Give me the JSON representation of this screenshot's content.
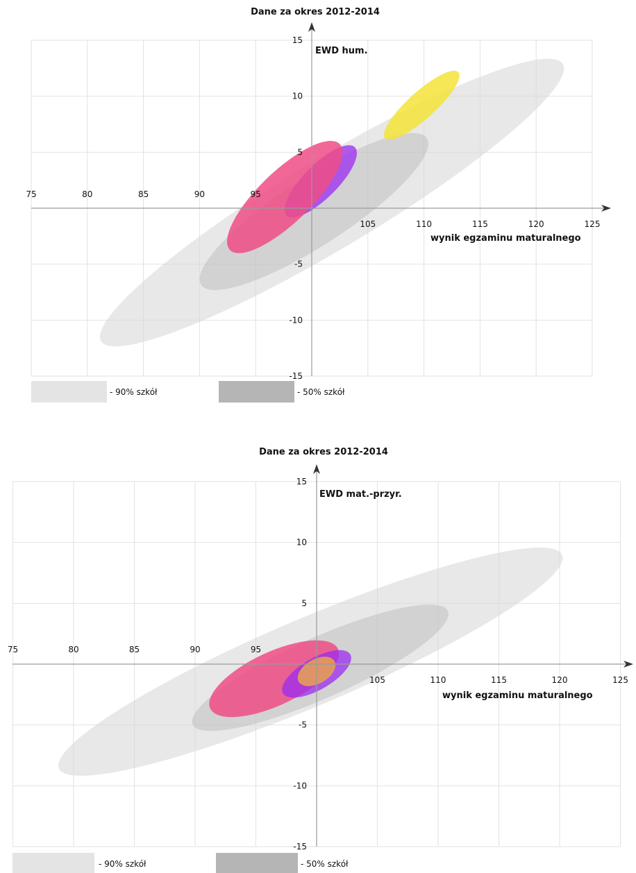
{
  "charts": [
    {
      "title": "Dane za okres 2012-2014",
      "ylabel": "EWD hum.",
      "xlabel": "wynik egzaminu maturalnego",
      "legend": {
        "p90": "- 90% szkół",
        "p50": "- 50% szkół"
      }
    },
    {
      "title": "Dane za okres 2012-2014",
      "ylabel": "EWD mat.-przyr.",
      "xlabel": "wynik egzaminu maturalnego",
      "legend": {
        "p90": "- 90% szkół",
        "p50": "- 50% szkół"
      }
    }
  ],
  "chart_data": [
    {
      "type": "scatter",
      "title": "Dane za okres 2012-2014",
      "xlabel": "wynik egzaminu maturalnego",
      "ylabel": "EWD hum.",
      "xlim": [
        75,
        125
      ],
      "ylim": [
        -15,
        15
      ],
      "x_ticks": [
        75,
        80,
        85,
        90,
        95,
        105,
        110,
        115,
        120,
        125
      ],
      "y_ticks": [
        15,
        10,
        5,
        -5,
        -10,
        -15
      ],
      "grid": true,
      "legend_position": "bottom-left",
      "ellipses": [
        {
          "kind": "90% szkół",
          "color": "#d9d9d9",
          "opacity": 0.6,
          "cx": 101.8,
          "cy": 0.5,
          "rx": 24.0,
          "ry": 4.0,
          "angle": 31
        },
        {
          "kind": "50% szkół",
          "color": "#a8a8a8",
          "opacity": 0.35,
          "cx": 100.2,
          "cy": -0.3,
          "rx": 12.0,
          "ry": 3.0,
          "angle": 33
        },
        {
          "color": "#f4e33a",
          "opacity": 0.85,
          "cx": 109.8,
          "cy": 9.2,
          "rx": 4.4,
          "ry": 1.2,
          "angle": 42
        },
        {
          "color": "#9b2bf0",
          "opacity": 0.75,
          "cx": 100.8,
          "cy": 2.4,
          "rx": 4.3,
          "ry": 1.5,
          "angle": 45
        },
        {
          "color": "#ee4d86",
          "opacity": 0.85,
          "cx": 97.6,
          "cy": 1.0,
          "rx": 6.8,
          "ry": 2.3,
          "angle": 44
        }
      ]
    },
    {
      "type": "scatter",
      "title": "Dane za okres 2012-2014",
      "xlabel": "wynik egzaminu maturalnego",
      "ylabel": "EWD mat.-przyr.",
      "xlim": [
        75,
        125
      ],
      "ylim": [
        -15,
        15
      ],
      "x_ticks": [
        75,
        80,
        85,
        90,
        95,
        105,
        110,
        115,
        120,
        125
      ],
      "y_ticks": [
        15,
        10,
        5,
        -5,
        -10,
        -15
      ],
      "grid": true,
      "legend_position": "bottom-left",
      "ellipses": [
        {
          "kind": "90% szkół",
          "color": "#d9d9d9",
          "opacity": 0.6,
          "cx": 99.5,
          "cy": 0.2,
          "rx": 22.5,
          "ry": 3.6,
          "angle": 23
        },
        {
          "kind": "50% szkół",
          "color": "#a8a8a8",
          "opacity": 0.35,
          "cx": 100.3,
          "cy": -0.3,
          "rx": 11.5,
          "ry": 2.5,
          "angle": 24
        },
        {
          "color": "#ee4d86",
          "opacity": 0.85,
          "cx": 96.5,
          "cy": -1.2,
          "rx": 5.8,
          "ry": 2.2,
          "angle": 25
        },
        {
          "color": "#9b2bf0",
          "opacity": 0.75,
          "cx": 100.0,
          "cy": -0.8,
          "rx": 3.2,
          "ry": 1.3,
          "angle": 30
        },
        {
          "color": "#e6a550",
          "opacity": 0.85,
          "cx": 100.0,
          "cy": -0.6,
          "rx": 1.7,
          "ry": 1.0,
          "angle": 30
        }
      ]
    }
  ]
}
